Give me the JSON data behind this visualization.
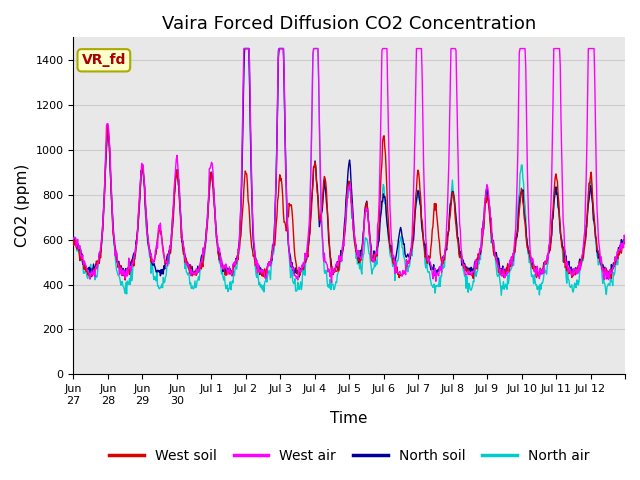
{
  "title": "Vaira Forced Diffusion CO2 Concentration",
  "xlabel": "Time",
  "ylabel": "CO2 (ppm)",
  "ylim": [
    0,
    1500
  ],
  "yticks": [
    0,
    200,
    400,
    600,
    800,
    1000,
    1200,
    1400
  ],
  "xtick_locs": [
    0,
    1,
    2,
    3,
    4,
    5,
    6,
    7,
    8,
    9,
    10,
    11,
    12,
    13,
    14,
    15,
    16
  ],
  "xtick_labels": [
    "Jun\n27",
    "Jun\n28",
    "Jun\n29",
    "Jun\n30",
    "Jul 1",
    "Jul 2",
    "Jul 3",
    "Jul 4",
    "Jul 5",
    "Jul 6",
    "Jul 7",
    "Jul 8",
    "Jul 9",
    "Jul 10",
    "Jul 11",
    "Jul 12",
    ""
  ],
  "colors": {
    "west_soil": "#dd0000",
    "west_air": "#ff00ff",
    "north_soil": "#000099",
    "north_air": "#00cccc"
  },
  "legend_labels": [
    "West soil",
    "West air",
    "North soil",
    "North air"
  ],
  "annotation_text": "VR_fd",
  "annotation_color": "#aa0000",
  "annotation_bg": "#ffffcc",
  "annotation_border": "#aaaa00",
  "grid_color": "#cccccc",
  "plot_bg": "#e8e8e8",
  "title_fontsize": 13,
  "axis_fontsize": 11,
  "tick_fontsize": 8,
  "legend_fontsize": 10,
  "n_days": 16,
  "n_per_day": 48,
  "xlim": [
    0,
    16
  ]
}
